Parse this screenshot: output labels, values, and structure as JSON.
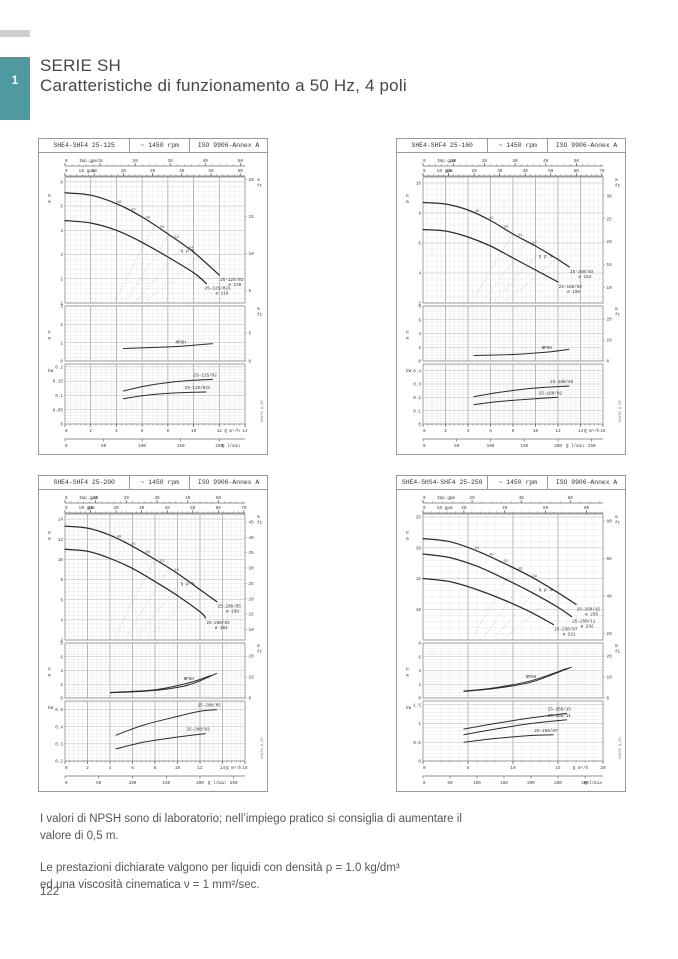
{
  "page": {
    "section_number": "1",
    "accent_color": "#4f99a1",
    "title": "SERIE SH",
    "subtitle": "Caratteristiche di funzionamento a 50 Hz, 4 poli",
    "footer": {
      "note1_line1": "I valori di NPSH sono di laboratorio; nell’impiego pratico si consiglia di aumentare il",
      "note1_line2": "valore di 0,5 m.",
      "note2_line1": "Le prestazioni dichiarate valgono per liquidi con densità ρ = 1.0 kg/dm³",
      "note2_line2": "ed una viscosità cinematica ν = 1 mm²/sec.",
      "page_number": "122"
    }
  },
  "chart_data": [
    {
      "type": "line",
      "title": "SHE4-SHF4 25-125",
      "rpm": "~ 1450 rpm",
      "standard": "ISO 9906-Annex A",
      "code": "04933_A_CH",
      "top_axes": {
        "imp_label": "Imp.gpm",
        "imp_ticks": [
          0,
          10,
          20,
          30,
          40,
          50
        ],
        "us_label": "US gpm",
        "us_ticks": [
          0,
          10,
          20,
          30,
          40,
          50,
          60
        ]
      },
      "x": {
        "max": 14,
        "m3h_ticks": [
          0,
          2,
          4,
          6,
          8,
          10,
          12,
          14
        ],
        "m3h_label": "Q m³/h",
        "m3h_label_at": 13,
        "lmin_ticks": [
          0,
          50,
          100,
          150,
          200
        ],
        "lmin_label": "Q l/min",
        "lmin_label_at": 215
      },
      "h_axis": {
        "min": 1,
        "max": 6.2,
        "ticks": [
          6,
          5,
          4,
          3,
          2,
          1
        ],
        "ft_ticks": [
          20,
          15,
          10,
          5
        ],
        "unit_left": "H m",
        "unit_right": "m ft"
      },
      "h_curves": [
        {
          "label": "25-125/02",
          "sub": "ø 138",
          "points": [
            [
              0,
              5.55
            ],
            [
              2,
              5.45
            ],
            [
              4,
              5.1
            ],
            [
              6,
              4.55
            ],
            [
              8,
              3.85
            ],
            [
              10,
              3.1
            ],
            [
              12,
              2.15
            ]
          ]
        },
        {
          "label": "25-125/02A",
          "sub": "ø 118",
          "points": [
            [
              0,
              4.4
            ],
            [
              2,
              4.3
            ],
            [
              4,
              4.0
            ],
            [
              6,
              3.5
            ],
            [
              8,
              2.9
            ],
            [
              10,
              2.25
            ],
            [
              11,
              1.8
            ]
          ]
        }
      ],
      "eta_label": "η p %",
      "eta_values": [
        "40",
        "44",
        "48",
        "50",
        "52",
        "54"
      ],
      "npsh_axis": {
        "min": 0,
        "max": 3,
        "ticks": [
          3,
          2,
          1,
          0
        ],
        "ft_ticks": [
          5,
          0
        ],
        "unit_left": "H m",
        "unit_right": "m ft"
      },
      "npsh_label": "NPSH",
      "npsh_curves": [
        {
          "points": [
            [
              4.5,
              0.68
            ],
            [
              7,
              0.74
            ],
            [
              9,
              0.8
            ],
            [
              11.5,
              0.95
            ]
          ]
        }
      ],
      "kw_axis": {
        "min": 0,
        "max": 0.21,
        "ticks": [
          0.2,
          0.15,
          0.1,
          0.05,
          0
        ],
        "label": "kW"
      },
      "kw_curves": [
        {
          "label": "25-125/02",
          "points": [
            [
              4.5,
              0.115
            ],
            [
              6,
              0.131
            ],
            [
              8,
              0.145
            ],
            [
              10,
              0.153
            ],
            [
              11.5,
              0.156
            ]
          ]
        },
        {
          "label": "25-125/02A",
          "points": [
            [
              4.5,
              0.088
            ],
            [
              6,
              0.099
            ],
            [
              8,
              0.107
            ],
            [
              10,
              0.111
            ],
            [
              11,
              0.112
            ]
          ]
        }
      ]
    },
    {
      "type": "line",
      "title": "SHE4-SHF4 25-160",
      "rpm": "~ 1450 rpm",
      "standard": "ISO 9906-Annex A",
      "code": "04935_A_CH",
      "top_axes": {
        "imp_label": "Imp.gpm",
        "imp_ticks": [
          0,
          10,
          20,
          30,
          40,
          50
        ],
        "us_label": "US gpm",
        "us_ticks": [
          0,
          10,
          20,
          30,
          40,
          50,
          60,
          70
        ]
      },
      "x": {
        "max": 16,
        "m3h_ticks": [
          0,
          2,
          4,
          6,
          8,
          10,
          12,
          14,
          16
        ],
        "m3h_label": "Q m³/h",
        "m3h_label_at": 15,
        "lmin_ticks": [
          0,
          50,
          100,
          150,
          200,
          250
        ],
        "lmin_label": "Q l/min",
        "lmin_label_at": 225
      },
      "h_axis": {
        "min": 2,
        "max": 10.4,
        "ticks": [
          10,
          8,
          6,
          4,
          2
        ],
        "ft_ticks": [
          30,
          25,
          20,
          15,
          10
        ],
        "unit_left": "H m",
        "unit_right": "m ft"
      },
      "h_curves": [
        {
          "label": "25-160/03",
          "sub": "ø 164",
          "points": [
            [
              0,
              8.7
            ],
            [
              2,
              8.6
            ],
            [
              4,
              8.2
            ],
            [
              6,
              7.5
            ],
            [
              8,
              6.6
            ],
            [
              10,
              5.8
            ],
            [
              12,
              4.9
            ],
            [
              13,
              4.4
            ]
          ]
        },
        {
          "label": "25-160/02",
          "sub": "ø 150",
          "points": [
            [
              0,
              6.9
            ],
            [
              2,
              6.8
            ],
            [
              4,
              6.4
            ],
            [
              6,
              5.8
            ],
            [
              8,
              5.0
            ],
            [
              10,
              4.2
            ],
            [
              12,
              3.4
            ]
          ]
        }
      ],
      "eta_label": "η p %",
      "eta_values": [
        "40",
        "45",
        "50",
        "54",
        "57"
      ],
      "npsh_axis": {
        "min": 0,
        "max": 8,
        "ticks": [
          8,
          6,
          4,
          2,
          0
        ],
        "ft_ticks": [
          20,
          10,
          0
        ],
        "unit_left": "H m",
        "unit_right": "m ft"
      },
      "npsh_label": "NPSH",
      "npsh_curves": [
        {
          "points": [
            [
              4.5,
              0.8
            ],
            [
              8,
              0.95
            ],
            [
              11,
              1.3
            ],
            [
              13,
              1.7
            ]
          ]
        }
      ],
      "kw_axis": {
        "min": 0,
        "max": 0.45,
        "ticks": [
          0.4,
          0.3,
          0.2,
          0.1,
          0
        ],
        "label": "kW"
      },
      "kw_curves": [
        {
          "label": "25-160/03",
          "points": [
            [
              4.5,
              0.205
            ],
            [
              7,
              0.24
            ],
            [
              10,
              0.27
            ],
            [
              13,
              0.285
            ]
          ]
        },
        {
          "label": "25-160/02",
          "points": [
            [
              4.5,
              0.145
            ],
            [
              7,
              0.17
            ],
            [
              10,
              0.19
            ],
            [
              12,
              0.2
            ]
          ]
        }
      ]
    },
    {
      "type": "line",
      "title": "SHE4-SHF4 25-200",
      "rpm": "~ 1450 rpm",
      "standard": "ISO 9906-Annex A",
      "code": "04934_A_CH",
      "top_axes": {
        "imp_label": "Imp.gpm",
        "imp_ticks": [
          0,
          10,
          20,
          30,
          40,
          50
        ],
        "us_label": "US gpm",
        "us_ticks": [
          0,
          10,
          20,
          30,
          40,
          50,
          60,
          70
        ]
      },
      "x": {
        "max": 16,
        "m3h_ticks": [
          0,
          2,
          4,
          6,
          8,
          10,
          12,
          14,
          16
        ],
        "m3h_label": "Q m³/h",
        "m3h_label_at": 15,
        "lmin_ticks": [
          0,
          50,
          100,
          150,
          200,
          250
        ],
        "lmin_label": "Q l/min",
        "lmin_label_at": 225
      },
      "h_axis": {
        "min": 2,
        "max": 14.5,
        "ticks": [
          14,
          12,
          10,
          8,
          6,
          4,
          2
        ],
        "ft_ticks": [
          45,
          40,
          35,
          30,
          25,
          20,
          15,
          10
        ],
        "unit_left": "H m",
        "unit_right": "m ft"
      },
      "h_curves": [
        {
          "label": "25-200/05",
          "sub": "ø 199",
          "points": [
            [
              0,
              13.3
            ],
            [
              2,
              13.1
            ],
            [
              4,
              12.4
            ],
            [
              6,
              11.3
            ],
            [
              8,
              10.0
            ],
            [
              10,
              8.6
            ],
            [
              12,
              7.0
            ],
            [
              13.5,
              5.8
            ]
          ]
        },
        {
          "label": "25-200/03",
          "sub": "ø 184",
          "points": [
            [
              0,
              11.0
            ],
            [
              2,
              10.8
            ],
            [
              4,
              10.1
            ],
            [
              6,
              9.1
            ],
            [
              8,
              7.8
            ],
            [
              10,
              6.4
            ],
            [
              12,
              4.8
            ],
            [
              12.5,
              4.2
            ]
          ]
        }
      ],
      "eta_label": "η p %",
      "eta_values": [
        "40",
        "45",
        "50",
        "53",
        "55"
      ],
      "npsh_axis": {
        "min": 0,
        "max": 8,
        "ticks": [
          8,
          6,
          4,
          2,
          0
        ],
        "ft_ticks": [
          20,
          10,
          0
        ],
        "unit_left": "H m",
        "unit_right": "m ft"
      },
      "npsh_label": "NPSH",
      "npsh_curves": [
        {
          "points": [
            [
              4,
              0.8
            ],
            [
              8,
              1.2
            ],
            [
              11,
              2.2
            ],
            [
              13,
              3.3
            ]
          ]
        },
        {
          "points": [
            [
              4,
              0.75
            ],
            [
              8,
              1.1
            ],
            [
              11,
              1.9
            ],
            [
              13.5,
              3.6
            ]
          ]
        }
      ],
      "kw_axis": {
        "min": 0.2,
        "max": 0.55,
        "ticks": [
          0.5,
          0.4,
          0.3,
          0.2
        ],
        "label": "kW"
      },
      "kw_curves": [
        {
          "label": "25-200/05",
          "points": [
            [
              4.5,
              0.35
            ],
            [
              7,
              0.41
            ],
            [
              10,
              0.46
            ],
            [
              12,
              0.49
            ],
            [
              13.5,
              0.5
            ]
          ]
        },
        {
          "label": "25-200/03",
          "points": [
            [
              4.5,
              0.27
            ],
            [
              7,
              0.31
            ],
            [
              10,
              0.34
            ],
            [
              12.5,
              0.36
            ]
          ]
        }
      ]
    },
    {
      "type": "line",
      "title": "SHE4-SHS4-SHF4 25-250",
      "rpm": "~ 1450 rpm",
      "standard": "ISO 9906-Annex A",
      "code": "04936_A_CH",
      "top_axes": {
        "imp_label": "Imp.gpm",
        "imp_ticks": [
          0,
          20,
          40,
          60
        ],
        "us_label": "US gpm",
        "us_ticks": [
          0,
          20,
          40,
          60,
          80
        ]
      },
      "x": {
        "max": 20,
        "m3h_ticks": [
          0,
          5,
          10,
          15,
          20
        ],
        "m3h_label": "Q m³/h",
        "m3h_label_at": 17.5,
        "lmin_ticks": [
          0,
          50,
          100,
          150,
          200,
          250,
          300
        ],
        "lmin_label": "Q l/min",
        "lmin_label_at": 315
      },
      "h_axis": {
        "min": 5,
        "max": 25.5,
        "ticks": [
          25,
          20,
          15,
          10
        ],
        "ft_ticks": [
          80,
          60,
          40,
          20
        ],
        "unit_left": "H m",
        "unit_right": "m ft"
      },
      "h_curves": [
        {
          "label": "25-250/15",
          "sub": "ø 256",
          "points": [
            [
              0,
              21.5
            ],
            [
              3,
              21.0
            ],
            [
              6,
              19.5
            ],
            [
              9,
              17.5
            ],
            [
              12,
              15.3
            ],
            [
              15,
              12.7
            ],
            [
              17,
              10.8
            ]
          ]
        },
        {
          "label": "25-250/11",
          "sub": "ø 242",
          "points": [
            [
              0,
              19.0
            ],
            [
              3,
              18.4
            ],
            [
              6,
              17.0
            ],
            [
              9,
              15.0
            ],
            [
              12,
              12.8
            ],
            [
              15,
              10.3
            ],
            [
              16.5,
              8.8
            ]
          ]
        },
        {
          "label": "25-250/07",
          "sub": "ø 221",
          "points": [
            [
              0,
              15.0
            ],
            [
              3,
              14.5
            ],
            [
              6,
              13.2
            ],
            [
              9,
              11.5
            ],
            [
              12,
              9.5
            ],
            [
              14.5,
              7.5
            ]
          ]
        }
      ],
      "eta_label": "η p %",
      "eta_values": [
        "44",
        "48",
        "52",
        "56",
        "58"
      ],
      "npsh_axis": {
        "min": 0,
        "max": 8,
        "ticks": [
          8,
          6,
          4,
          2,
          0
        ],
        "ft_ticks": [
          20,
          10,
          0
        ],
        "unit_left": "H m",
        "unit_right": "m ft"
      },
      "npsh_label": "NPSH",
      "npsh_curves": [
        {
          "points": [
            [
              4.5,
              1.0
            ],
            [
              8,
              1.5
            ],
            [
              12,
              2.5
            ],
            [
              16,
              4.3
            ]
          ]
        },
        {
          "points": [
            [
              4.5,
              0.95
            ],
            [
              8,
              1.4
            ],
            [
              12,
              2.3
            ],
            [
              16.5,
              4.5
            ]
          ]
        }
      ],
      "kw_axis": {
        "min": 0,
        "max": 1.6,
        "ticks": [
          1.5,
          1,
          0.5,
          0
        ],
        "label": "kW"
      },
      "kw_curves": [
        {
          "label": "25-250/15",
          "points": [
            [
              4.5,
              0.85
            ],
            [
              8,
              1.0
            ],
            [
              12,
              1.15
            ],
            [
              16,
              1.27
            ]
          ]
        },
        {
          "label": "25-250/11",
          "points": [
            [
              4.5,
              0.7
            ],
            [
              8,
              0.85
            ],
            [
              12,
              1.0
            ],
            [
              16,
              1.1
            ]
          ]
        },
        {
          "label": "25-250/07",
          "points": [
            [
              4.5,
              0.5
            ],
            [
              8,
              0.6
            ],
            [
              12,
              0.68
            ],
            [
              14.5,
              0.7
            ]
          ]
        }
      ]
    }
  ]
}
